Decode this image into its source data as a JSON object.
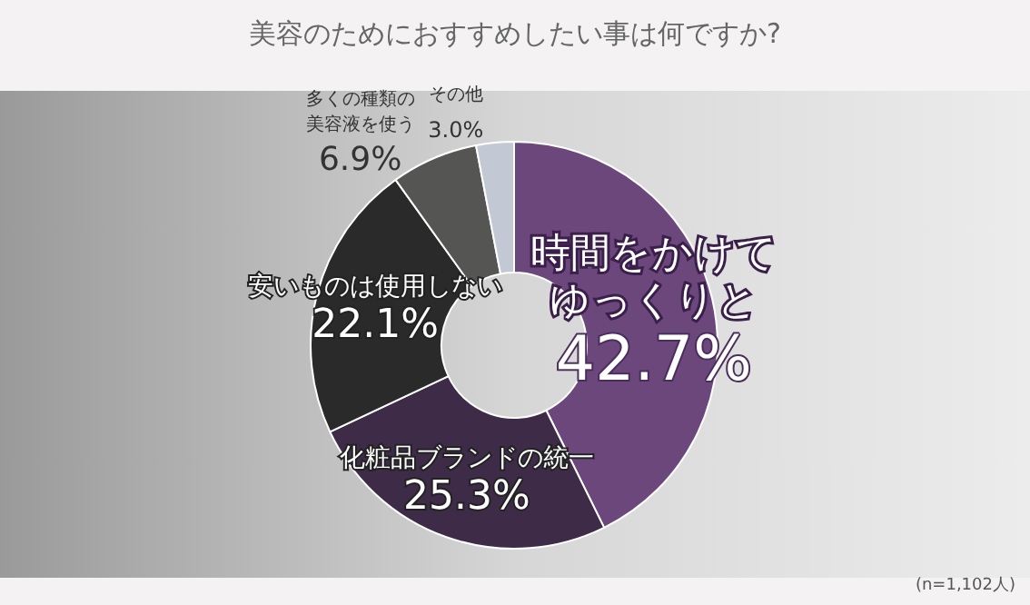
{
  "chart_data": {
    "type": "donut",
    "title": "美容のためにおすすめしたい事は何ですか?",
    "categories": [
      "時間をかけてゆっくりと",
      "化粧品ブランドの統一",
      "安いものは使用しない",
      "多くの種類の美容液を使う",
      "その他"
    ],
    "values": [
      42.7,
      25.3,
      22.1,
      6.9,
      3.0
    ],
    "colors": [
      "#6b477c",
      "#3e2b48",
      "#2a2a2a",
      "#555553",
      "#c3c9d4"
    ],
    "value_labels": [
      "42.7%",
      "25.3%",
      "22.1%",
      "6.9%",
      "3.0%"
    ],
    "legend": false,
    "annotations": [
      "(n=1,102人)"
    ]
  }
}
